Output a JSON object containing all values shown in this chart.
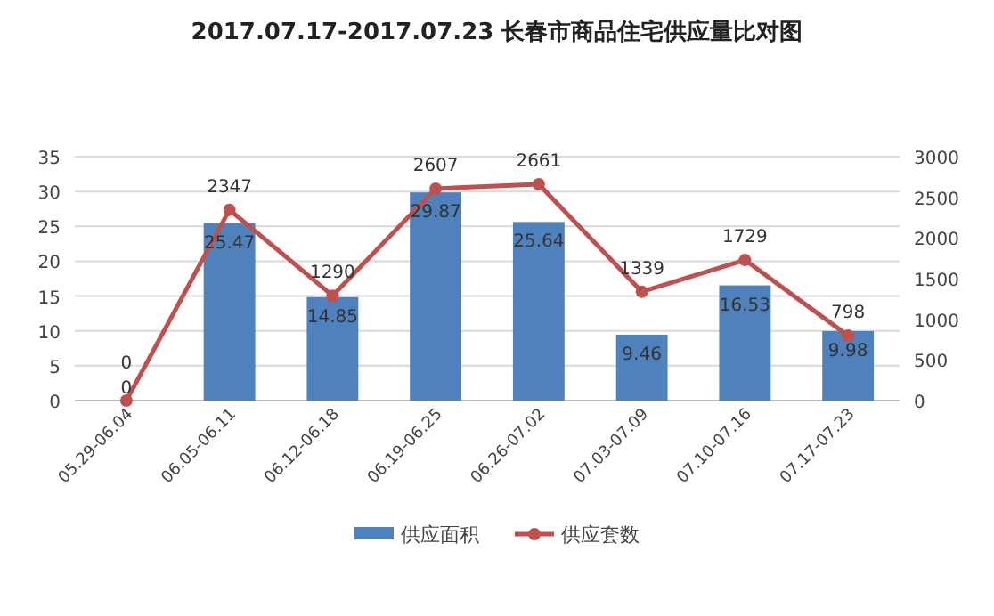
{
  "chart_data": {
    "type": "bar",
    "title": "2017.07.17-2017.07.23 长春市商品住宅供应量比对图",
    "categories": [
      "05.29-06.04",
      "06.05-06.11",
      "06.12-06.18",
      "06.19-06.25",
      "06.26-07.02",
      "07.03-07.09",
      "07.10-07.16",
      "07.17-07.23"
    ],
    "series": [
      {
        "name": "供应面积",
        "color": "#4f81bd",
        "values": [
          0,
          25.47,
          14.85,
          29.87,
          25.64,
          9.46,
          16.53,
          9.98
        ]
      },
      {
        "name": "供应套数",
        "type": "line",
        "axis": "y2",
        "color": "#c0504d",
        "marker": "circle",
        "values": [
          0,
          2347,
          1290,
          2607,
          2661,
          1339,
          1729,
          798
        ]
      }
    ],
    "ylim": [
      0,
      35
    ],
    "yticks": [
      0,
      5,
      10,
      15,
      20,
      25,
      30,
      35
    ],
    "y2lim": [
      0,
      3000
    ],
    "y2ticks": [
      0,
      500,
      1000,
      1500,
      2000,
      2500,
      3000
    ],
    "grid": "y",
    "legend": "bottom",
    "data_labels": true
  }
}
